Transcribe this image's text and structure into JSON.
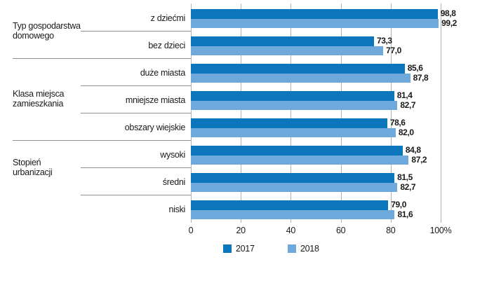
{
  "chart_data": {
    "type": "bar",
    "orientation": "horizontal",
    "title": "",
    "xlabel": "",
    "ylabel": "",
    "xlim": [
      0,
      100
    ],
    "x_ticks": [
      0,
      20,
      40,
      60,
      80,
      100
    ],
    "x_tick_labels": [
      "0",
      "20",
      "40",
      "60",
      "80",
      "100%"
    ],
    "grid": "vertical",
    "decimal_separator": ",",
    "legend_position": "bottom",
    "categories": [
      "z dziećmi",
      "bez dzieci",
      "duże miasta",
      "mniejsze miasta",
      "obszary wiejskie",
      "wysoki",
      "średni",
      "niski"
    ],
    "groups": [
      {
        "label_lines": [
          "Typ gospodarstwa",
          "domowego"
        ],
        "category_indexes": [
          0,
          1
        ]
      },
      {
        "label_lines": [
          "Klasa miejsca",
          "zamieszkania"
        ],
        "category_indexes": [
          2,
          3,
          4
        ]
      },
      {
        "label_lines": [
          "Stopień",
          "urbanizacji"
        ],
        "category_indexes": [
          5,
          6,
          7
        ]
      }
    ],
    "series": [
      {
        "name": "2017",
        "color": "#0b76bc",
        "values": [
          98.8,
          73.3,
          85.6,
          81.4,
          78.6,
          84.8,
          81.5,
          79.0
        ]
      },
      {
        "name": "2018",
        "color": "#6fa9dc",
        "values": [
          99.2,
          77.0,
          87.8,
          82.7,
          82.0,
          87.2,
          82.7,
          81.6
        ]
      }
    ],
    "value_labels_shown": true
  },
  "colors": {
    "background": "#ffffff",
    "gridline": "#b3b3b3",
    "separator": "#8f8f8f",
    "text": "#1a1a1a",
    "series_2017": "#0b76bc",
    "series_2018": "#6fa9dc"
  }
}
